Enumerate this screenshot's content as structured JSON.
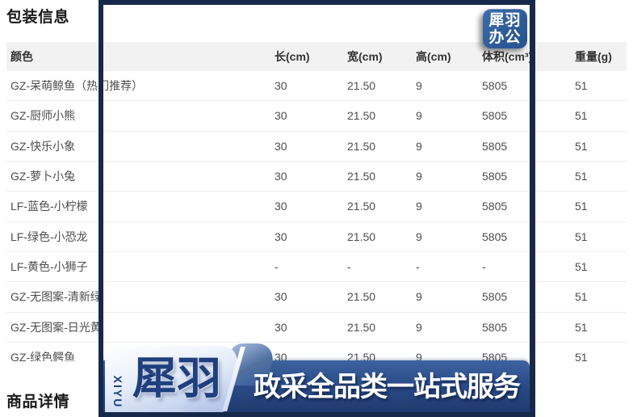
{
  "page": {
    "packaging_title": "包装信息",
    "detail_title": "商品详情"
  },
  "table": {
    "columns": [
      "颜色",
      "长(cm)",
      "宽(cm)",
      "高(cm)",
      "体积(cm³)",
      "重量(g)"
    ],
    "rows": [
      [
        "GZ-呆萌鲸鱼（热门推荐）",
        "30",
        "21.50",
        "9",
        "5805",
        "51"
      ],
      [
        "GZ-厨师小熊",
        "30",
        "21.50",
        "9",
        "5805",
        "51"
      ],
      [
        "GZ-快乐小象",
        "30",
        "21.50",
        "9",
        "5805",
        "51"
      ],
      [
        "GZ-萝卜小兔",
        "30",
        "21.50",
        "9",
        "5805",
        "51"
      ],
      [
        "LF-蓝色-小柠檬",
        "30",
        "21.50",
        "9",
        "5805",
        "51"
      ],
      [
        "LF-绿色-小恐龙",
        "30",
        "21.50",
        "9",
        "5805",
        "51"
      ],
      [
        "LF-黄色-小狮子",
        "-",
        "-",
        "-",
        "-",
        "51"
      ],
      [
        "GZ-无图案-清新绿",
        "30",
        "21.50",
        "9",
        "5805",
        "51"
      ],
      [
        "GZ-无图案-日光黄",
        "30",
        "21.50",
        "9",
        "5805",
        "51"
      ],
      [
        "GZ-绿色鳄鱼",
        "30",
        "21.50",
        "9",
        "5805",
        "51"
      ]
    ]
  },
  "watermark": {
    "logo_line1": "犀羽",
    "logo_line2": "办公",
    "brand_en": "XIYU",
    "brand_cn": "犀羽",
    "slogan": "政采全品类一站式服务"
  },
  "colors": {
    "frame_border": "#17294a",
    "logo_bg": "#2e5c99",
    "banner_dark_top": "#3c639f",
    "banner_dark_bottom": "#203a6c",
    "ribbon_light": "#dce5f6",
    "brand_text": "#1f3f7e",
    "header_bg": "#f2f2f2"
  }
}
